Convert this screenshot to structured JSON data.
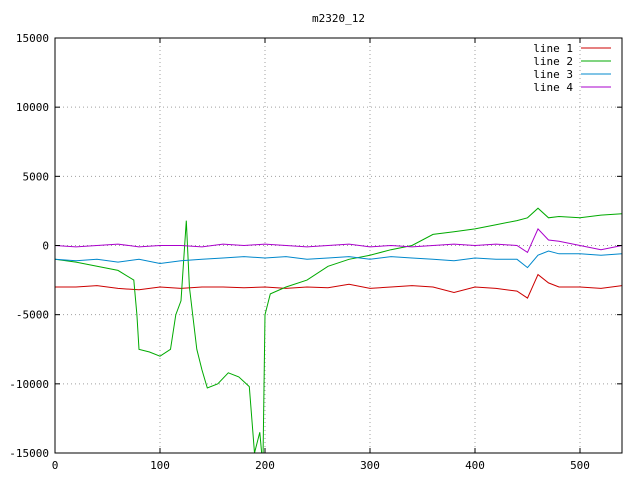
{
  "chart_data": {
    "type": "line",
    "title": "m2320_12",
    "xlabel": "",
    "ylabel": "",
    "xlim": [
      0,
      540
    ],
    "ylim": [
      -15000,
      15000
    ],
    "xticks": [
      0,
      100,
      200,
      300,
      400,
      500
    ],
    "yticks": [
      -15000,
      -10000,
      -5000,
      0,
      5000,
      10000,
      15000
    ],
    "xtick_labels": [
      "0",
      "100",
      "200",
      "300",
      "400",
      "500"
    ],
    "ytick_labels": [
      "-15000",
      "-10000",
      "-5000",
      "0",
      "5000",
      "10000",
      "15000"
    ],
    "grid": true,
    "legend_position": "top-right",
    "series": [
      {
        "name": "line 1",
        "color": "#cc0000",
        "points": [
          [
            0,
            -3000
          ],
          [
            20,
            -3000
          ],
          [
            40,
            -2900
          ],
          [
            60,
            -3100
          ],
          [
            80,
            -3200
          ],
          [
            100,
            -3000
          ],
          [
            120,
            -3100
          ],
          [
            140,
            -3000
          ],
          [
            160,
            -3000
          ],
          [
            180,
            -3050
          ],
          [
            200,
            -3000
          ],
          [
            220,
            -3100
          ],
          [
            240,
            -3000
          ],
          [
            260,
            -3050
          ],
          [
            280,
            -2800
          ],
          [
            300,
            -3100
          ],
          [
            320,
            -3000
          ],
          [
            340,
            -2900
          ],
          [
            360,
            -3000
          ],
          [
            380,
            -3400
          ],
          [
            400,
            -3000
          ],
          [
            420,
            -3100
          ],
          [
            440,
            -3300
          ],
          [
            450,
            -3800
          ],
          [
            460,
            -2100
          ],
          [
            470,
            -2700
          ],
          [
            480,
            -3000
          ],
          [
            500,
            -3000
          ],
          [
            520,
            -3100
          ],
          [
            540,
            -2900
          ]
        ]
      },
      {
        "name": "line 2",
        "color": "#00aa00",
        "points": [
          [
            0,
            -1000
          ],
          [
            20,
            -1200
          ],
          [
            40,
            -1500
          ],
          [
            60,
            -1800
          ],
          [
            75,
            -2500
          ],
          [
            78,
            -5000
          ],
          [
            80,
            -7500
          ],
          [
            90,
            -7700
          ],
          [
            100,
            -8000
          ],
          [
            110,
            -7500
          ],
          [
            115,
            -5000
          ],
          [
            120,
            -4000
          ],
          [
            125,
            1800
          ],
          [
            128,
            -3000
          ],
          [
            135,
            -7500
          ],
          [
            140,
            -9000
          ],
          [
            145,
            -10300
          ],
          [
            155,
            -10000
          ],
          [
            165,
            -9200
          ],
          [
            175,
            -9500
          ],
          [
            185,
            -10200
          ],
          [
            190,
            -15000
          ],
          [
            195,
            -13500
          ],
          [
            198,
            -16000
          ],
          [
            200,
            -5000
          ],
          [
            205,
            -3500
          ],
          [
            220,
            -3000
          ],
          [
            240,
            -2500
          ],
          [
            260,
            -1500
          ],
          [
            280,
            -1000
          ],
          [
            300,
            -700
          ],
          [
            320,
            -300
          ],
          [
            340,
            0
          ],
          [
            360,
            800
          ],
          [
            380,
            1000
          ],
          [
            400,
            1200
          ],
          [
            420,
            1500
          ],
          [
            440,
            1800
          ],
          [
            450,
            2000
          ],
          [
            460,
            2700
          ],
          [
            470,
            2000
          ],
          [
            480,
            2100
          ],
          [
            500,
            2000
          ],
          [
            520,
            2200
          ],
          [
            540,
            2300
          ]
        ]
      },
      {
        "name": "line 3",
        "color": "#0088cc",
        "points": [
          [
            0,
            -1000
          ],
          [
            20,
            -1100
          ],
          [
            40,
            -1000
          ],
          [
            60,
            -1200
          ],
          [
            80,
            -1000
          ],
          [
            100,
            -1300
          ],
          [
            120,
            -1100
          ],
          [
            140,
            -1000
          ],
          [
            160,
            -900
          ],
          [
            180,
            -800
          ],
          [
            200,
            -900
          ],
          [
            220,
            -800
          ],
          [
            240,
            -1000
          ],
          [
            260,
            -900
          ],
          [
            280,
            -800
          ],
          [
            300,
            -1000
          ],
          [
            320,
            -800
          ],
          [
            340,
            -900
          ],
          [
            360,
            -1000
          ],
          [
            380,
            -1100
          ],
          [
            400,
            -900
          ],
          [
            420,
            -1000
          ],
          [
            440,
            -1000
          ],
          [
            450,
            -1600
          ],
          [
            460,
            -700
          ],
          [
            470,
            -400
          ],
          [
            480,
            -600
          ],
          [
            500,
            -600
          ],
          [
            520,
            -700
          ],
          [
            540,
            -600
          ]
        ]
      },
      {
        "name": "line 4",
        "color": "#aa00cc",
        "points": [
          [
            0,
            0
          ],
          [
            20,
            -100
          ],
          [
            40,
            0
          ],
          [
            60,
            100
          ],
          [
            80,
            -100
          ],
          [
            100,
            0
          ],
          [
            120,
            0
          ],
          [
            140,
            -100
          ],
          [
            160,
            100
          ],
          [
            180,
            0
          ],
          [
            200,
            100
          ],
          [
            220,
            0
          ],
          [
            240,
            -100
          ],
          [
            260,
            0
          ],
          [
            280,
            100
          ],
          [
            300,
            -100
          ],
          [
            320,
            0
          ],
          [
            340,
            -100
          ],
          [
            360,
            0
          ],
          [
            380,
            100
          ],
          [
            400,
            0
          ],
          [
            420,
            100
          ],
          [
            440,
            0
          ],
          [
            450,
            -500
          ],
          [
            460,
            1200
          ],
          [
            470,
            400
          ],
          [
            480,
            300
          ],
          [
            500,
            0
          ],
          [
            520,
            -300
          ],
          [
            540,
            0
          ]
        ]
      }
    ]
  }
}
